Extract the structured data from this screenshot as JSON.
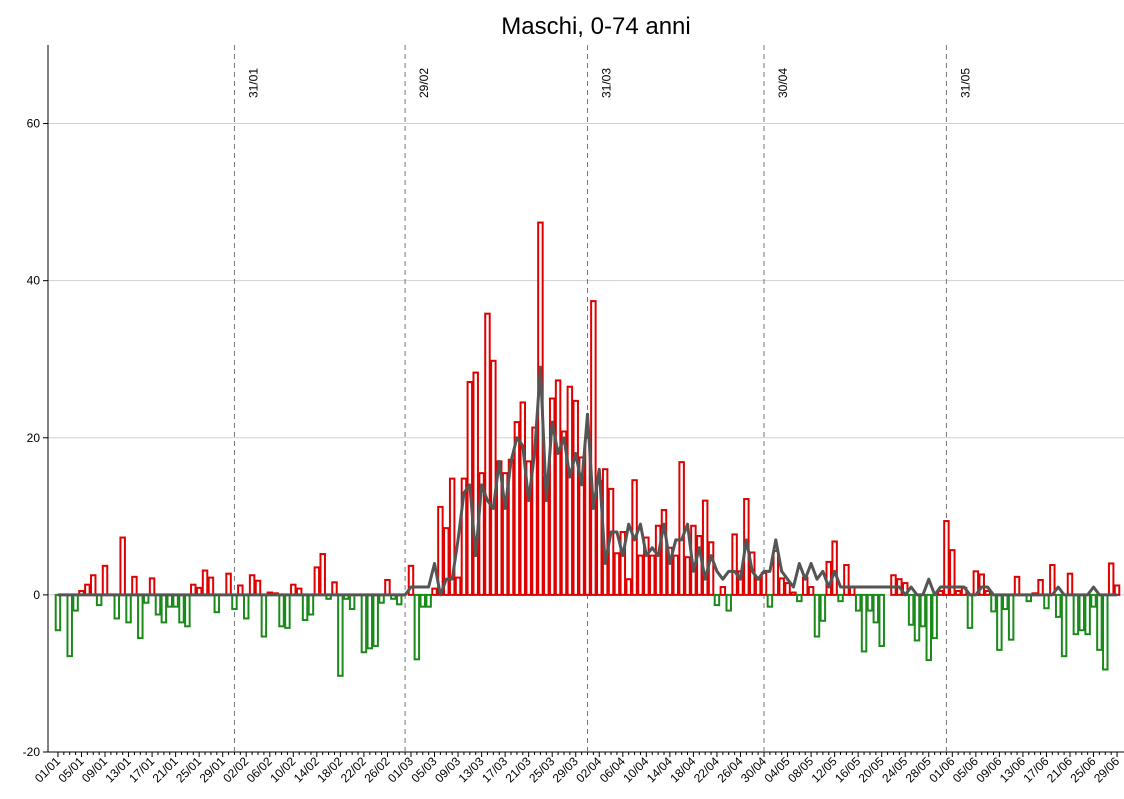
{
  "chart_data": {
    "type": "bar",
    "title": "Maschi, 0-74 anni",
    "categories": [
      "01/01",
      null,
      null,
      null,
      "05/01",
      null,
      null,
      null,
      "09/01",
      null,
      null,
      null,
      "13/01",
      null,
      null,
      null,
      "17/01",
      null,
      null,
      null,
      "21/01",
      null,
      null,
      null,
      "25/01",
      null,
      null,
      null,
      "29/01",
      null,
      null,
      null,
      "02/02",
      null,
      null,
      null,
      "06/02",
      null,
      null,
      null,
      "10/02",
      null,
      null,
      null,
      "14/02",
      null,
      null,
      null,
      "18/02",
      null,
      null,
      null,
      "22/02",
      null,
      null,
      null,
      "26/02",
      null,
      null,
      null,
      "01/03",
      null,
      null,
      null,
      "05/03",
      null,
      null,
      null,
      "09/03",
      null,
      null,
      null,
      "13/03",
      null,
      null,
      null,
      "17/03",
      null,
      null,
      null,
      "21/03",
      null,
      null,
      null,
      "25/03",
      null,
      null,
      null,
      "29/03",
      null,
      null,
      null,
      "02/04",
      null,
      null,
      null,
      "06/04",
      null,
      null,
      null,
      "10/04",
      null,
      null,
      null,
      "14/04",
      null,
      null,
      null,
      "18/04",
      null,
      null,
      null,
      "22/04",
      null,
      null,
      null,
      "26/04",
      null,
      null,
      null,
      "30/04",
      null,
      null,
      null,
      "04/05",
      null,
      null,
      null,
      "08/05",
      null,
      null,
      null,
      "12/05",
      null,
      null,
      null,
      "16/05",
      null,
      null,
      null,
      "20/05",
      null,
      null,
      null,
      "24/05",
      null,
      null,
      null,
      "28/05",
      null,
      null,
      null,
      "01/06",
      null,
      null,
      null,
      "05/06",
      null,
      null,
      null,
      "09/06",
      null,
      null,
      null,
      "13/06",
      null,
      null,
      null,
      "17/06",
      null,
      null,
      null,
      "21/06",
      null,
      null,
      null,
      "25/06",
      null,
      null,
      null,
      "29/06"
    ],
    "series": [
      {
        "type": "bar",
        "color_positive": "#e00000",
        "color_negative": "#1a8a1a",
        "values": [
          -4.5,
          0,
          -7.8,
          -2,
          0.5,
          1.3,
          2.5,
          -1.3,
          3.7,
          0,
          -3,
          7.3,
          -3.5,
          2.3,
          -5.5,
          -1,
          2.1,
          -2.5,
          -3.5,
          -1.5,
          -1.5,
          -3.5,
          -4,
          1.3,
          0.9,
          3.1,
          2.2,
          -2.2,
          0,
          2.7,
          -1.8,
          1.2,
          -3,
          2.5,
          1.8,
          -5.3,
          0.3,
          0.2,
          -4,
          -4.2,
          1.3,
          0.8,
          -3.2,
          -2.5,
          3.5,
          5.2,
          -0.5,
          1.6,
          -10.3,
          -0.5,
          -1.8,
          0,
          -7.3,
          -6.8,
          -6.5,
          -1,
          1.9,
          -0.5,
          -1.2,
          0,
          3.7,
          -8.2,
          -1.5,
          -1.5,
          0.8,
          11.2,
          8.5,
          14.8,
          2.2,
          14.8,
          27.1,
          28.3,
          15.5,
          35.8,
          29.8,
          17,
          15.5,
          17.2,
          22,
          24.5,
          17,
          21.3,
          47.4,
          15,
          25,
          27.3,
          20.8,
          26.5,
          24.7,
          17.5,
          20,
          37.4,
          14.5,
          16,
          13.5,
          5.3,
          8,
          2,
          14.6,
          5,
          7.3,
          5,
          8.8,
          10.8,
          6,
          5,
          16.9,
          4.8,
          8.8,
          7.5,
          12,
          6.7,
          -1.3,
          1,
          -2,
          7.7,
          3,
          12.2,
          5.4,
          2,
          2.8,
          -1.5,
          5.6,
          2.1,
          1.5,
          0.3,
          -0.8,
          2.2,
          1,
          -5.3,
          -3.3,
          4.2,
          6.8,
          -0.8,
          3.8,
          1,
          -2,
          -7.2,
          -2,
          -3.5,
          -6.5,
          0,
          2.5,
          2,
          1.5,
          -3.8,
          -5.8,
          -4,
          -8.3,
          -5.5,
          0.5,
          9.4,
          5.7,
          0.5,
          0.9,
          -4.2,
          3,
          2.6,
          0.5,
          -2.1,
          -7,
          -1.8,
          -5.7,
          2.3,
          0,
          -0.8,
          0.2,
          1.9,
          -1.7,
          3.8,
          -2.8,
          -7.8,
          2.7,
          -5,
          -4.5,
          -5,
          -1.5,
          -7,
          -9.5,
          4,
          1.2
        ]
      },
      {
        "type": "line",
        "color": "#555555",
        "values": [
          0,
          0,
          0,
          0,
          0,
          0,
          0,
          0,
          0,
          0,
          0,
          0,
          0,
          0,
          0,
          0,
          0,
          0,
          0,
          0,
          0,
          0,
          0,
          0,
          0,
          0,
          0,
          0,
          0,
          0,
          0,
          0,
          0,
          0,
          0,
          0,
          0,
          0,
          0,
          0,
          0,
          0,
          0,
          0,
          0,
          0,
          0,
          0,
          0,
          0,
          0,
          0,
          0,
          0,
          0,
          0,
          0,
          0,
          0,
          0,
          1,
          1,
          1,
          1,
          4,
          0,
          2,
          2,
          7,
          13,
          14,
          5,
          14,
          12,
          11,
          17,
          11,
          17,
          20,
          19,
          12,
          18,
          29,
          12,
          22,
          18,
          20,
          15,
          18,
          14,
          23,
          11,
          16,
          4,
          8,
          8,
          5,
          9,
          7,
          9,
          5,
          6,
          5,
          9,
          4,
          7,
          7,
          9,
          3,
          6,
          2,
          5,
          3,
          2,
          3,
          3,
          2,
          7,
          3,
          2,
          3,
          3,
          7,
          3,
          2,
          1,
          4,
          2,
          4,
          2,
          3,
          1,
          3,
          1,
          1,
          1,
          1,
          1,
          1,
          1,
          1,
          1,
          1,
          1,
          0,
          1,
          0,
          0,
          2,
          0,
          1,
          1,
          1,
          1,
          1,
          0,
          0,
          1,
          1,
          0,
          0,
          0,
          0,
          0,
          0,
          0,
          0,
          0,
          0,
          0,
          1,
          0,
          0,
          0,
          0,
          0,
          1,
          0,
          0,
          0,
          0
        ]
      }
    ],
    "annotations": [
      {
        "label": "31/01",
        "x": 30
      },
      {
        "label": "29/02",
        "x": 59
      },
      {
        "label": "31/03",
        "x": 90
      },
      {
        "label": "30/04",
        "x": 120
      },
      {
        "label": "31/05",
        "x": 151
      }
    ],
    "ylim": [
      -20,
      70
    ],
    "yticks": [
      -20,
      0,
      20,
      40,
      60
    ],
    "grid": true
  }
}
